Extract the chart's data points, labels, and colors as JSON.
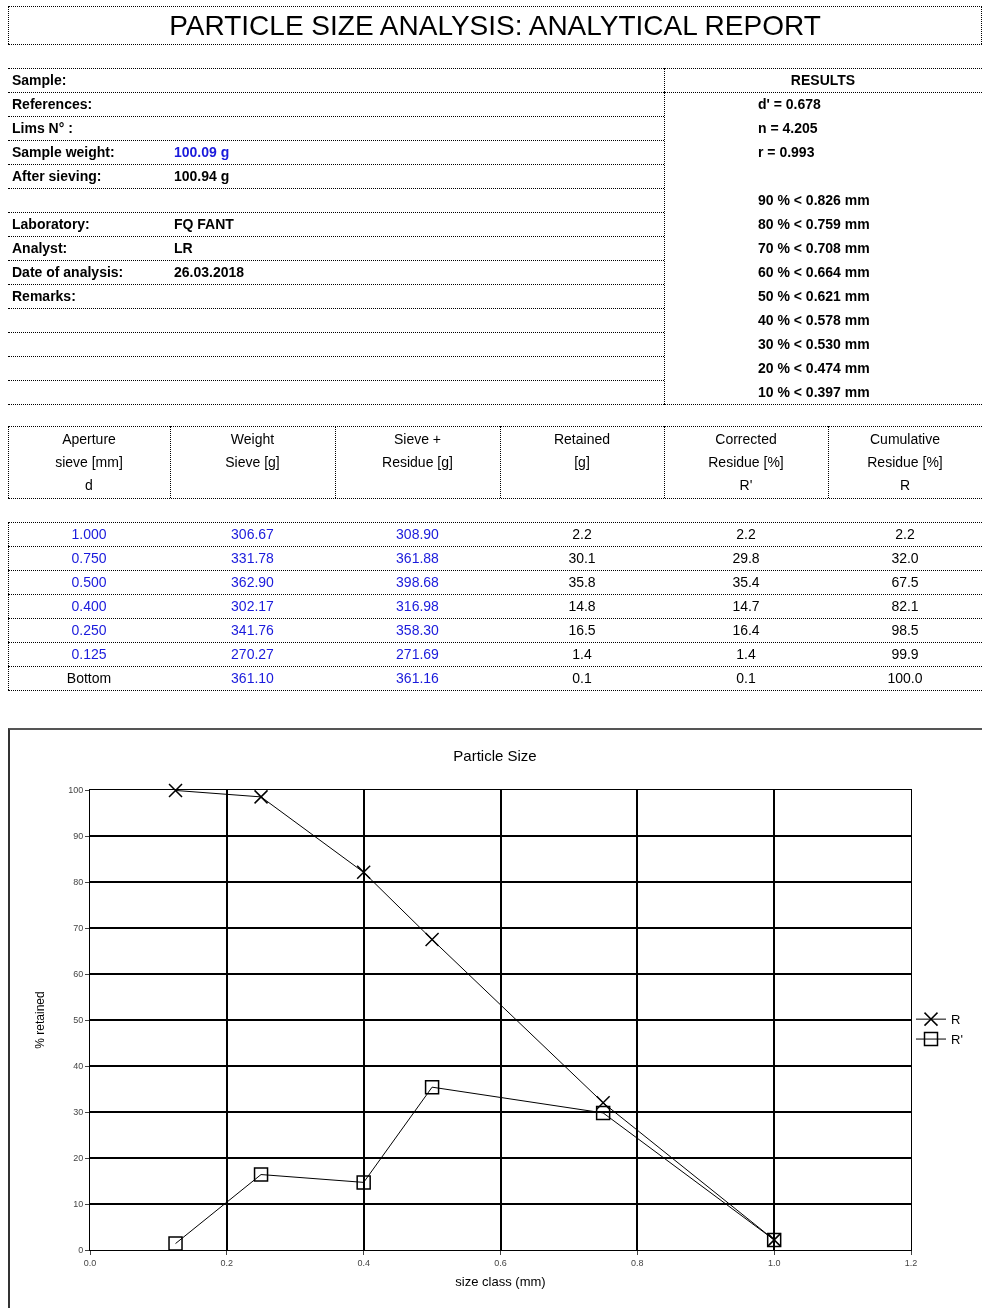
{
  "chart_data": [
    {
      "type": "other",
      "title": "PARTICLE SIZE ANALYSIS: ANALYTICAL REPORT",
      "annotations": [
        "Sample:",
        "References:",
        "Lims N° :",
        "Sample weight:",
        "100.09 g",
        "After sieving:",
        "100.94 g",
        "Laboratory:",
        "FQ FANT",
        "Analyst:",
        "LR",
        "Date of analysis:",
        "26.03.2018",
        "Remarks:",
        "RESULTS",
        "d' = 0.678",
        "n = 4.205",
        "r = 0.993",
        "90 % < 0.826 mm",
        "80 % < 0.759 mm",
        "70 % < 0.708 mm",
        "60 % < 0.664 mm",
        "50 % < 0.621 mm",
        "40 % < 0.578 mm",
        "30 % < 0.530 mm",
        "20 % < 0.474 mm",
        "10 % < 0.397 mm",
        "Aperture\nsieve [mm]\nd",
        "Weight\nSieve [g]",
        "Sieve +\nResidue [g]",
        "Retained\n[g]",
        "Corrected\nResidue [%]\nR'",
        "Cumulative\nResidue [%]\nR",
        "1.000",
        "306.67",
        "308.90",
        "2.2",
        "2.2",
        "2.2",
        "0.750",
        "331.78",
        "361.88",
        "30.1",
        "29.8",
        "32.0",
        "0.500",
        "362.90",
        "398.68",
        "35.8",
        "35.4",
        "67.5",
        "0.400",
        "302.17",
        "316.98",
        "14.8",
        "14.7",
        "82.1",
        "0.250",
        "341.76",
        "358.30",
        "16.5",
        "16.4",
        "98.5",
        "0.125",
        "270.27",
        "271.69",
        "1.4",
        "1.4",
        "99.9",
        "Bottom",
        "361.10",
        "361.16",
        "0.1",
        "0.1",
        "100.0"
      ]
    },
    {
      "type": "line",
      "title": "Particle Size",
      "xlabel": "size class (mm)",
      "ylabel": "% retained",
      "x": [
        0.125,
        0.25,
        0.4,
        0.5,
        0.75,
        1.0
      ],
      "series": [
        {
          "name": "R",
          "color": "#000000",
          "marker": "cross",
          "values": [
            99.9,
            98.5,
            82.1,
            67.5,
            32.0,
            2.2
          ]
        },
        {
          "name": "R'",
          "color": "#000000",
          "marker": "square",
          "values": [
            1.4,
            16.4,
            14.7,
            35.4,
            29.8,
            2.2
          ]
        }
      ],
      "xlim": [
        0,
        1.2
      ],
      "xticks": [
        {
          "value": 0,
          "label": "0.0"
        },
        0.2,
        0.4,
        0.6,
        0.8,
        {
          "value": 1,
          "label": "1.0"
        },
        1.2
      ],
      "ylim": [
        0,
        100
      ],
      "yticks": [
        0,
        10,
        20,
        30,
        40,
        50,
        60,
        70,
        80,
        90,
        100
      ],
      "grid": true,
      "legend": "right",
      "line_style": "solid"
    }
  ]
}
